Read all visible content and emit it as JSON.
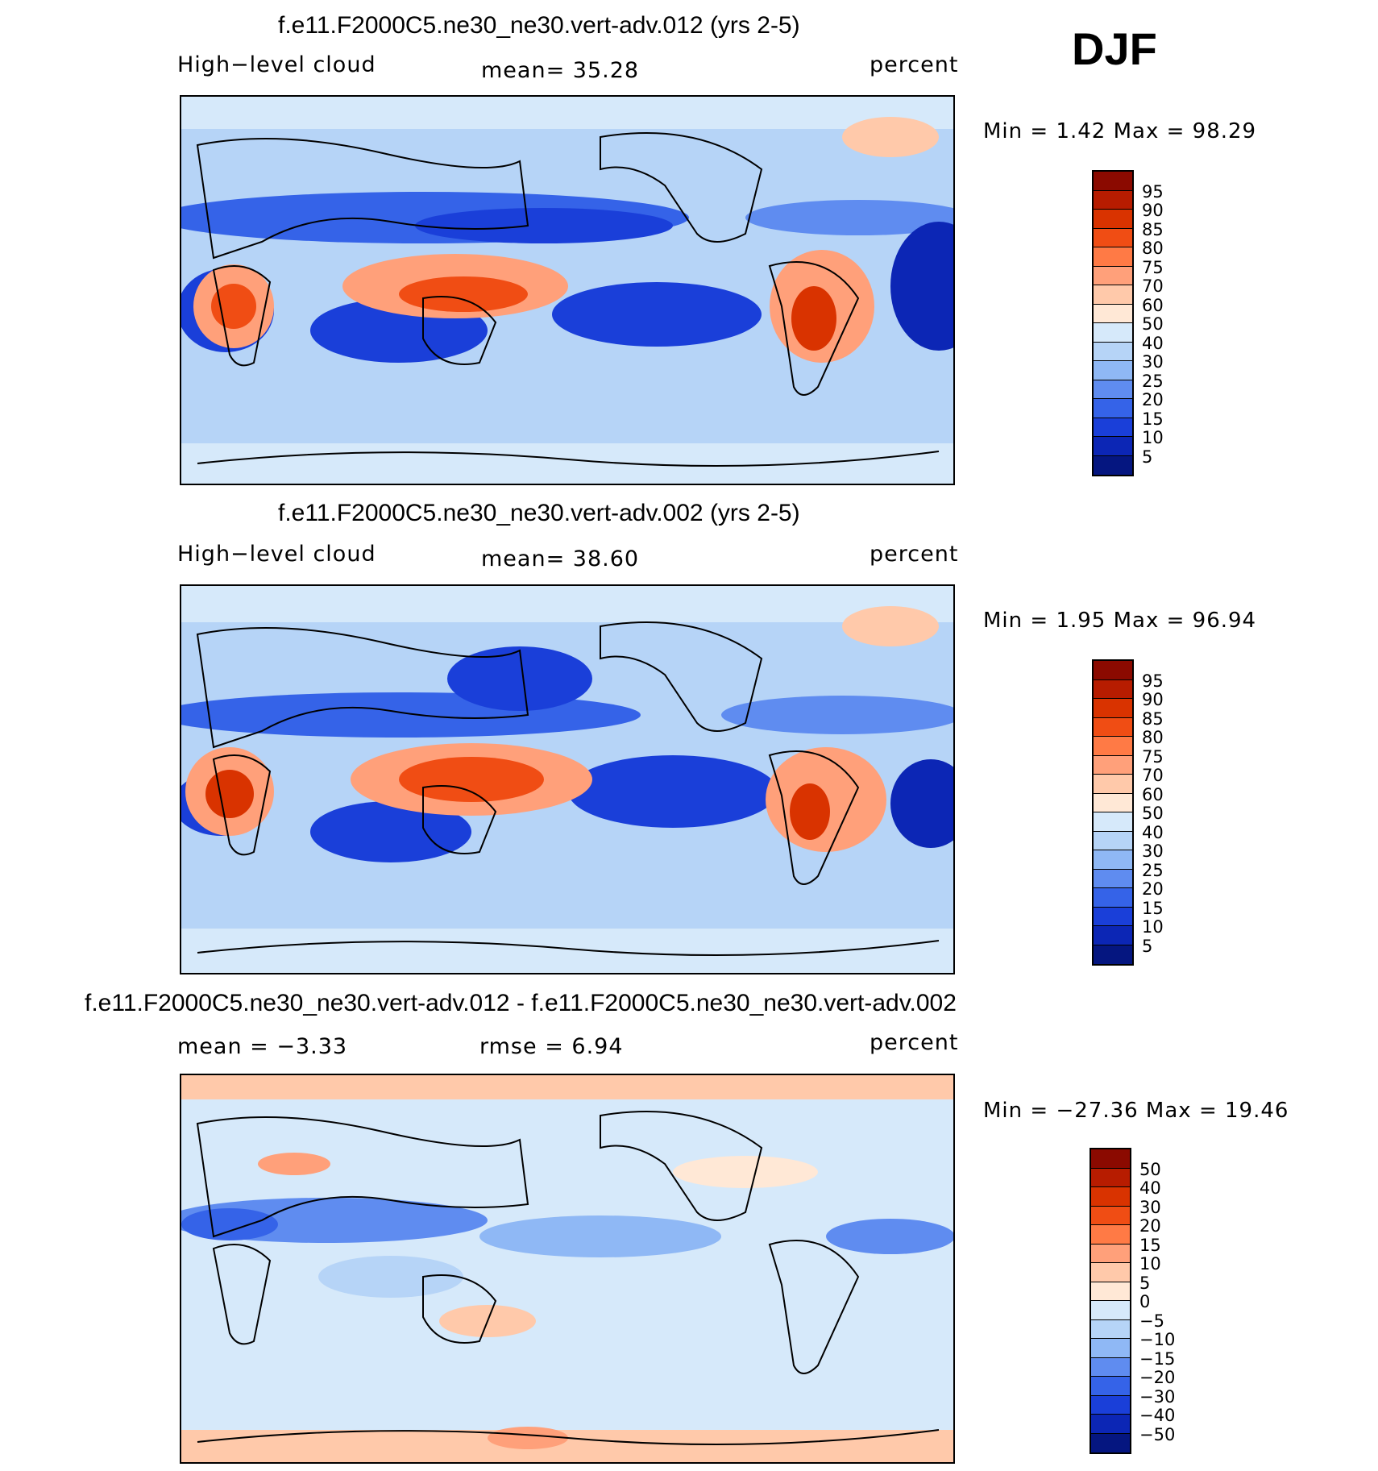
{
  "season": "DJF",
  "panels": [
    {
      "title": "f.e11.F2000C5.ne30_ne30.vert-adv.012 (yrs 2-5)",
      "left_label": "High−level cloud",
      "center_label": "mean=   35.28",
      "right_label": "percent",
      "minmax": "Min =    1.42  Max =   98.29"
    },
    {
      "title": "f.e11.F2000C5.ne30_ne30.vert-adv.002 (yrs 2-5)",
      "left_label": "High−level cloud",
      "center_label": "mean=   38.60",
      "right_label": "percent",
      "minmax": "Min =    1.95  Max =   96.94"
    },
    {
      "title": "f.e11.F2000C5.ne30_ne30.vert-adv.012 - f.e11.F2000C5.ne30_ne30.vert-adv.002",
      "left_label": "mean =   −3.33",
      "center_label": "rmse =    6.94",
      "right_label": "percent",
      "minmax": "Min = −27.36  Max =   19.46"
    }
  ],
  "colorbar_abs": {
    "labels": [
      "95",
      "90",
      "85",
      "80",
      "75",
      "70",
      "60",
      "50",
      "40",
      "30",
      "25",
      "20",
      "15",
      "10",
      "5"
    ],
    "colors": [
      "#8b0a00",
      "#b71c00",
      "#d93300",
      "#f04d14",
      "#ff7a45",
      "#ffa07a",
      "#ffc9aa",
      "#ffe8d6",
      "#d6e9fa",
      "#b6d4f7",
      "#8fb8f5",
      "#5f8cf0",
      "#3563e8",
      "#1a3fd9",
      "#0c26b5",
      "#051680"
    ]
  },
  "colorbar_diff": {
    "labels": [
      "50",
      "40",
      "30",
      "20",
      "15",
      "10",
      "5",
      "0",
      "−5",
      "−10",
      "−15",
      "−20",
      "−30",
      "−40",
      "−50"
    ],
    "colors": [
      "#8b0a00",
      "#b71c00",
      "#d93300",
      "#f04d14",
      "#ff7a45",
      "#ffa07a",
      "#ffc9aa",
      "#ffe8d6",
      "#d6e9fa",
      "#b6d4f7",
      "#8fb8f5",
      "#5f8cf0",
      "#3563e8",
      "#1a3fd9",
      "#0c26b5",
      "#051680"
    ]
  }
}
